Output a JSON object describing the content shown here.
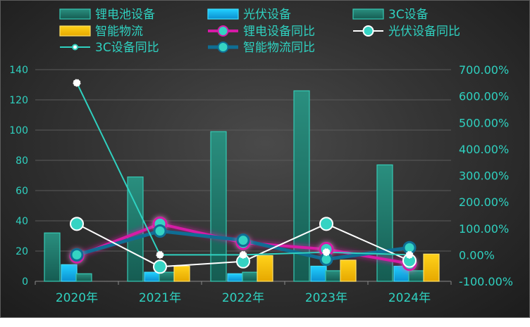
{
  "chart_data": {
    "type": "bar",
    "categories": [
      "2020年",
      "2021年",
      "2022年",
      "2023年",
      "2024年"
    ],
    "y_left": {
      "ticks": [
        0,
        20,
        40,
        60,
        80,
        100,
        120,
        140
      ],
      "ylim": [
        0,
        140
      ]
    },
    "y_right": {
      "tick_values": [
        -100,
        0,
        100,
        200,
        300,
        400,
        500,
        600,
        700
      ],
      "tick_labels": [
        "-100.00%",
        "0.00%",
        "100.00%",
        "200.00%",
        "300.00%",
        "400.00%",
        "500.00%",
        "600.00%",
        "700.00%"
      ],
      "ylim": [
        -100,
        700
      ]
    },
    "bar_series": [
      {
        "name": "锂电池设备",
        "values": [
          32,
          69,
          99,
          126,
          77
        ],
        "color": "#1f7a6c"
      },
      {
        "name": "光伏设备",
        "values": [
          11,
          6,
          5,
          10,
          10
        ],
        "color": "#12b8e6"
      },
      {
        "name": "3C设备",
        "values": [
          5,
          6,
          6,
          7,
          7
        ],
        "color": "#1f7a6c"
      },
      {
        "name": "智能物流",
        "values": [
          0,
          10,
          17,
          14,
          18
        ],
        "color": "#f2c40c"
      }
    ],
    "line_series": [
      {
        "name": "锂电设备同比",
        "values": [
          -5,
          117,
          46,
          21,
          -33
        ],
        "color": "#d61aa6"
      },
      {
        "name": "光伏设备同比",
        "values": [
          117,
          -45,
          -25,
          117,
          -22
        ],
        "color": "#ffffff"
      },
      {
        "name": "3C设备同比",
        "values": [
          650,
          0,
          0,
          10,
          0
        ],
        "color": "#2fd1c0"
      },
      {
        "name": "智能物流同比",
        "values": [
          0,
          90,
          55,
          -17,
          27
        ],
        "color": "#0f6e94"
      }
    ],
    "legend_position": "top",
    "grid": true
  }
}
